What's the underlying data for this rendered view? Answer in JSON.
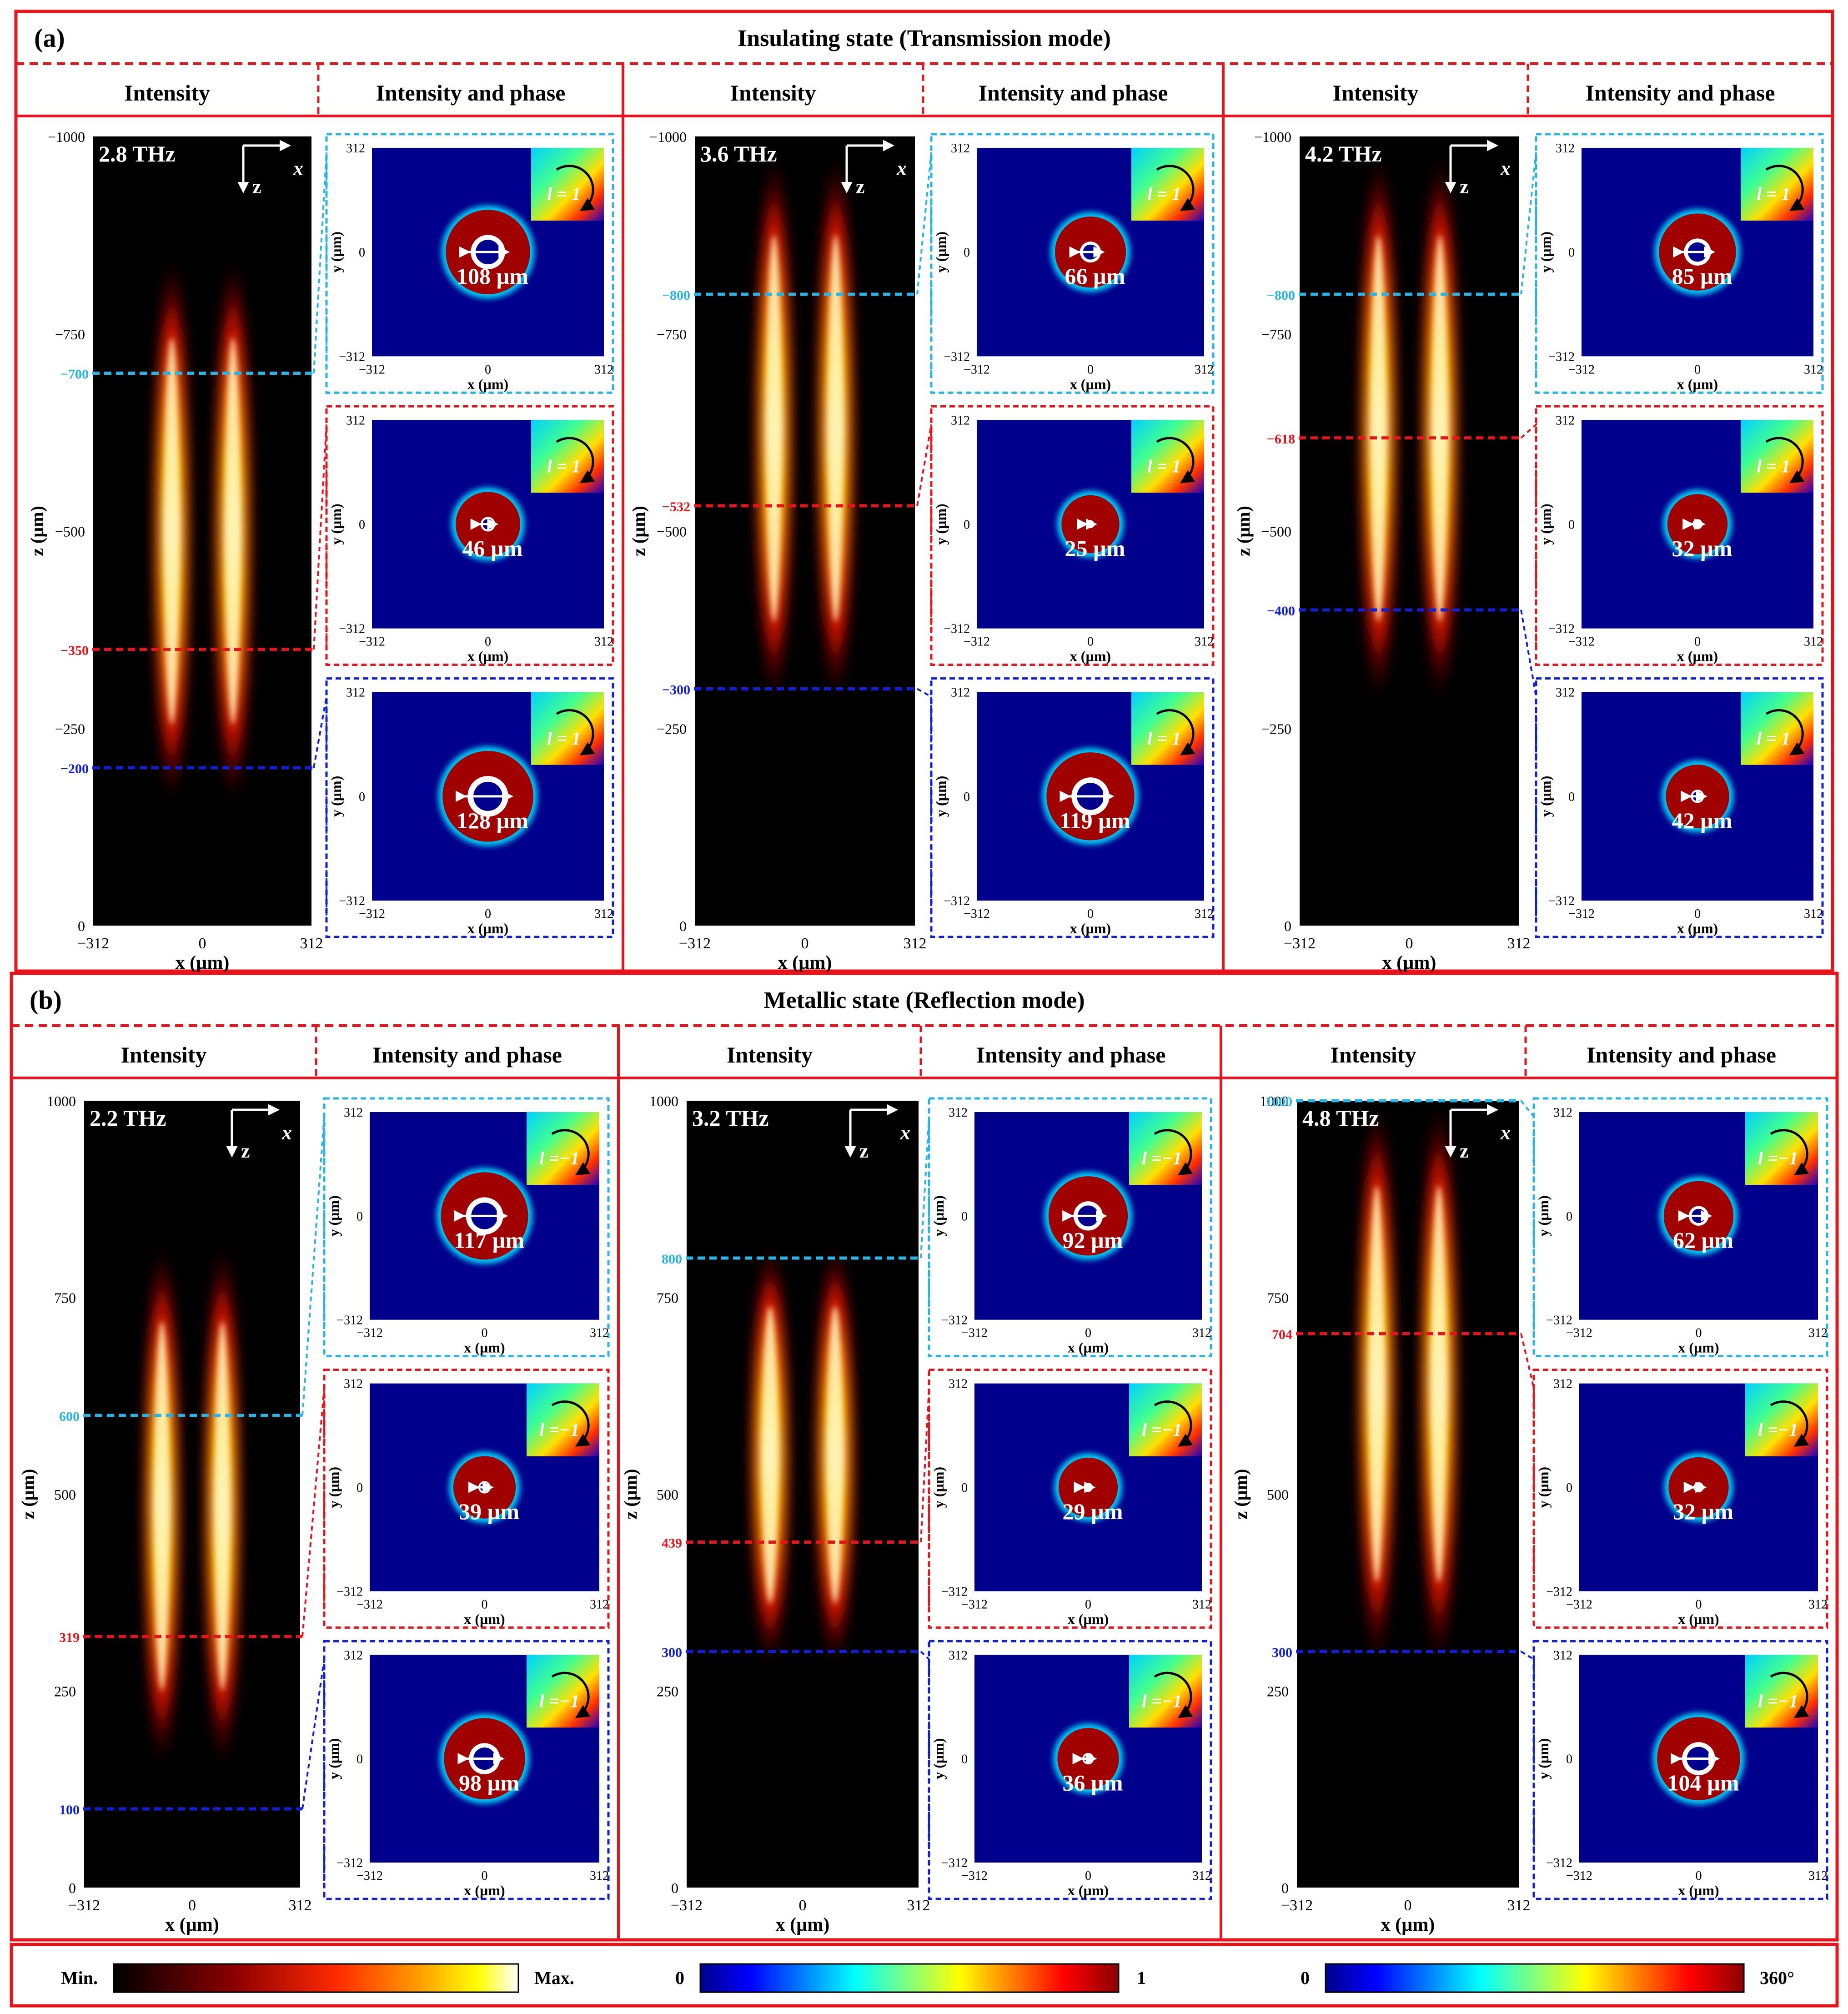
{
  "figure": {
    "colors": {
      "frame": "#e8141c",
      "cyan_line": "#27b4e6",
      "red_line": "#e8141c",
      "blue_line": "#1020d8",
      "intensity_background": "#000000",
      "phase_background": "#00008c"
    },
    "common": {
      "intensity_header": "Intensity",
      "phase_header": "Intensity and phase",
      "xlabel": "x (µm)",
      "zlabel": "z (µm)",
      "ylabel": "y (µm)",
      "x_ticks": [
        "−312",
        "0",
        "312"
      ],
      "y_ticks": [
        "312",
        "0",
        "−312"
      ],
      "axis_z": "z",
      "axis_x": "x"
    },
    "panels": [
      {
        "label": "(a)",
        "title": "Insulating state (Transmission mode)",
        "columns": [
          {
            "freq": "2.8 THz",
            "z_ticks": [
              "−1000",
              "−750",
              "−500",
              "−250",
              "0"
            ],
            "lines": [
              {
                "z": "−700",
                "color": "cyan"
              },
              {
                "z": "−350",
                "color": "red"
              },
              {
                "z": "−200",
                "color": "blue"
              }
            ],
            "insets": [
              {
                "diameter": "108 µm",
                "topological_charge": "l = 1",
                "charge_value": 1
              },
              {
                "diameter": "46 µm",
                "topological_charge": "l = 1",
                "charge_value": 1
              },
              {
                "diameter": "128 µm",
                "topological_charge": "l = 1",
                "charge_value": 1
              }
            ]
          },
          {
            "freq": "3.6 THz",
            "z_ticks": [
              "−1000",
              "−750",
              "−500",
              "−250",
              "0"
            ],
            "lines": [
              {
                "z": "−800",
                "color": "cyan"
              },
              {
                "z": "−532",
                "color": "red"
              },
              {
                "z": "−300",
                "color": "blue"
              }
            ],
            "insets": [
              {
                "diameter": "66 µm",
                "topological_charge": "l = 1",
                "charge_value": 1
              },
              {
                "diameter": "25 µm",
                "topological_charge": "l = 1",
                "charge_value": 1
              },
              {
                "diameter": "119 µm",
                "topological_charge": "l = 1",
                "charge_value": 1
              }
            ]
          },
          {
            "freq": "4.2 THz",
            "z_ticks": [
              "−1000",
              "−750",
              "−500",
              "−250",
              "0"
            ],
            "lines": [
              {
                "z": "−800",
                "color": "cyan"
              },
              {
                "z": "−618",
                "color": "red"
              },
              {
                "z": "−400",
                "color": "blue"
              }
            ],
            "insets": [
              {
                "diameter": "85 µm",
                "topological_charge": "l = 1",
                "charge_value": 1
              },
              {
                "diameter": "32 µm",
                "topological_charge": "l = 1",
                "charge_value": 1
              },
              {
                "diameter": "42 µm",
                "topological_charge": "l = 1",
                "charge_value": 1
              }
            ]
          }
        ]
      },
      {
        "label": "(b)",
        "title": "Metallic state (Reflection mode)",
        "columns": [
          {
            "freq": "2.2 THz",
            "z_ticks": [
              "1000",
              "750",
              "500",
              "250",
              "0"
            ],
            "lines": [
              {
                "z": "600",
                "color": "cyan"
              },
              {
                "z": "319",
                "color": "red"
              },
              {
                "z": "100",
                "color": "blue"
              }
            ],
            "insets": [
              {
                "diameter": "117 µm",
                "topological_charge": "l =−1",
                "charge_value": -1
              },
              {
                "diameter": "39 µm",
                "topological_charge": "l =−1",
                "charge_value": -1
              },
              {
                "diameter": "98 µm",
                "topological_charge": "l =−1",
                "charge_value": -1
              }
            ]
          },
          {
            "freq": "3.2 THz",
            "z_ticks": [
              "1000",
              "750",
              "500",
              "250",
              "0"
            ],
            "lines": [
              {
                "z": "800",
                "color": "cyan"
              },
              {
                "z": "439",
                "color": "red"
              },
              {
                "z": "300",
                "color": "blue"
              }
            ],
            "insets": [
              {
                "diameter": "92 µm",
                "topological_charge": "l =−1",
                "charge_value": -1
              },
              {
                "diameter": "29 µm",
                "topological_charge": "l =−1",
                "charge_value": -1
              },
              {
                "diameter": "36 µm",
                "topological_charge": "l =−1",
                "charge_value": -1
              }
            ]
          },
          {
            "freq": "4.8 THz",
            "z_ticks": [
              "1000",
              "750",
              "500",
              "250",
              "0"
            ],
            "lines": [
              {
                "z": "1000",
                "color": "cyan"
              },
              {
                "z": "704",
                "color": "red"
              },
              {
                "z": "300",
                "color": "blue"
              }
            ],
            "insets": [
              {
                "diameter": "62 µm",
                "topological_charge": "l =−1",
                "charge_value": -1
              },
              {
                "diameter": "32 µm",
                "topological_charge": "l =−1",
                "charge_value": -1
              },
              {
                "diameter": "104 µm",
                "topological_charge": "l =−1",
                "charge_value": -1
              }
            ]
          }
        ]
      }
    ],
    "colorbars": [
      {
        "name": "intensity",
        "min_label": "Min.",
        "max_label": "Max.",
        "colormap": "hot"
      },
      {
        "name": "normalized",
        "min_label": "0",
        "max_label": "1",
        "colormap": "jet"
      },
      {
        "name": "phase",
        "min_label": "0",
        "max_label": "360°",
        "colormap": "jet"
      }
    ]
  }
}
